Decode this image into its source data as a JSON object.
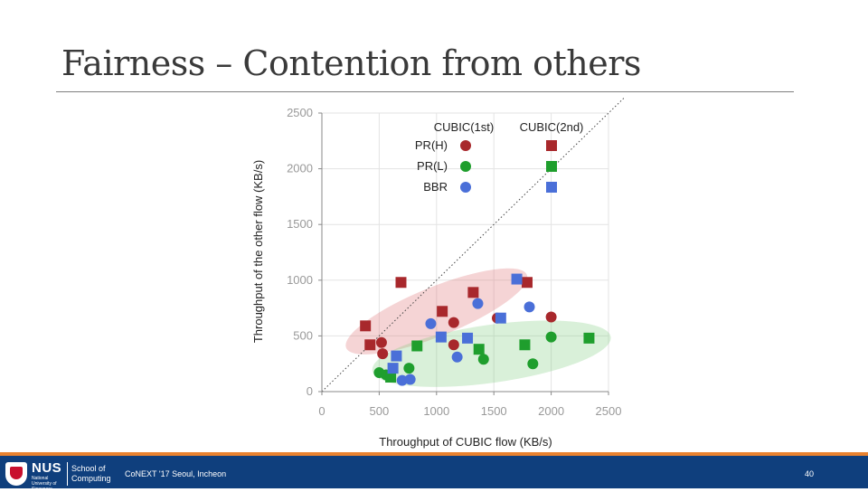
{
  "slide": {
    "title": "Fairness – Contention from others"
  },
  "footer": {
    "logo_text": "NUS",
    "logo_subtext": "National University of Singapore",
    "school_line1": "School of",
    "school_line2": "Computing",
    "conference": "CoNEXT '17 Seoul, Incheon",
    "page_number": "40"
  },
  "colors": {
    "red": "#a8282c",
    "green": "#1f9e2d",
    "blue": "#4a6fd8",
    "footer": "#0f3f7d",
    "accent": "#e9822f"
  },
  "chart_data": {
    "type": "scatter",
    "title": "",
    "xlabel": "Throughput of CUBIC flow (KB/s)",
    "ylabel": "Throughput of the other flow (KB/s)",
    "xlim": [
      0,
      2500
    ],
    "ylim": [
      0,
      2500
    ],
    "xticks": [
      "0",
      "500",
      "1000",
      "1500",
      "2000",
      "2500"
    ],
    "yticks": [
      "0",
      "500",
      "1000",
      "1500",
      "2000",
      "2500"
    ],
    "legend_headers": [
      "CUBIC(1st)",
      "CUBIC(2nd)"
    ],
    "series": [
      {
        "name": "PR(H)",
        "color": "red",
        "first": [
          [
            520,
            440
          ],
          [
            530,
            340
          ],
          [
            1150,
            620
          ],
          [
            1150,
            420
          ],
          [
            1530,
            660
          ],
          [
            2000,
            670
          ]
        ],
        "second": [
          [
            380,
            590
          ],
          [
            420,
            420
          ],
          [
            690,
            980
          ],
          [
            1050,
            720
          ],
          [
            1320,
            890
          ],
          [
            1790,
            980
          ]
        ]
      },
      {
        "name": "PR(L)",
        "color": "green",
        "first": [
          [
            500,
            170
          ],
          [
            560,
            150
          ],
          [
            760,
            210
          ],
          [
            1410,
            290
          ],
          [
            1840,
            250
          ],
          [
            2000,
            490
          ]
        ],
        "second": [
          [
            600,
            130
          ],
          [
            830,
            410
          ],
          [
            1370,
            380
          ],
          [
            1770,
            420
          ],
          [
            2330,
            480
          ]
        ]
      },
      {
        "name": "BBR",
        "color": "blue",
        "first": [
          [
            700,
            100
          ],
          [
            770,
            110
          ],
          [
            950,
            610
          ],
          [
            1180,
            310
          ],
          [
            1360,
            790
          ],
          [
            1810,
            760
          ]
        ],
        "second": [
          [
            620,
            210
          ],
          [
            650,
            320
          ],
          [
            1040,
            490
          ],
          [
            1270,
            480
          ],
          [
            1560,
            660
          ],
          [
            1700,
            1010
          ]
        ]
      }
    ],
    "regions": [
      {
        "label": "PR(H) region",
        "color": "red",
        "ellipse": {
          "cx": 1000,
          "cy": 720,
          "rx": 850,
          "ry": 220,
          "angle_deg": 22
        }
      },
      {
        "label": "PR(L) region",
        "color": "green",
        "ellipse": {
          "cx": 1480,
          "cy": 340,
          "rx": 1050,
          "ry": 260,
          "angle_deg": 8
        }
      }
    ],
    "reference_line": {
      "type": "y=x",
      "style": "dotted"
    },
    "legend_position": "top-right",
    "grid": true
  }
}
